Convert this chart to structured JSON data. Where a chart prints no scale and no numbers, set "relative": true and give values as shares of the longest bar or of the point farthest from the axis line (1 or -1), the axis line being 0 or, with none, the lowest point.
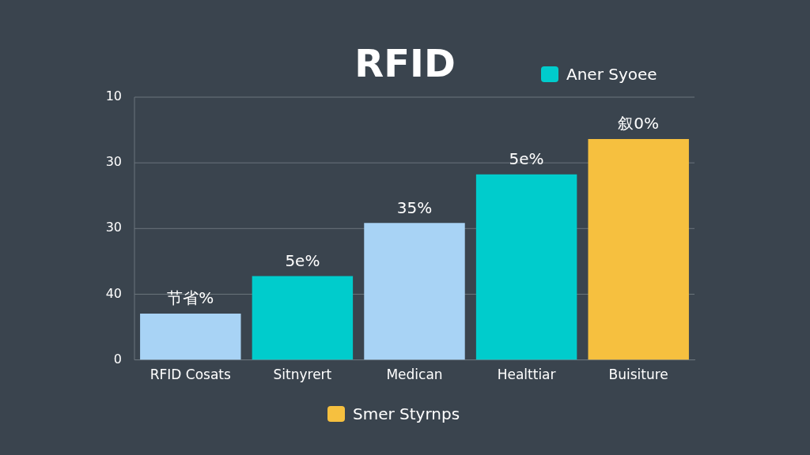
{
  "chart_data": {
    "type": "bar",
    "title": "RFID",
    "categories": [
      "RFID Cosats",
      "Sitnyrert",
      "Medican",
      "Healttiar",
      "Buisiture"
    ],
    "stacked": true,
    "legend": "top right",
    "grid": "y",
    "relative": true,
    "annotations": [
      "0",
      "40",
      "30",
      "30",
      "10",
      "节省%",
      "5e%",
      "35%",
      "5e%",
      "叙0%"
    ],
    "series": [
      {
        "color": "#a8d3f5",
        "values": [
          0.21,
          null,
          0.62,
          null,
          null
        ]
      },
      {
        "name": "Aner Syoee",
        "color": "#00cccc",
        "values": [
          null,
          0.38,
          null,
          0.84,
          null
        ]
      },
      {
        "name": "Smer Styrnps",
        "color": "#f6c03f",
        "values": [
          null,
          null,
          null,
          null,
          1
        ]
      }
    ]
  }
}
